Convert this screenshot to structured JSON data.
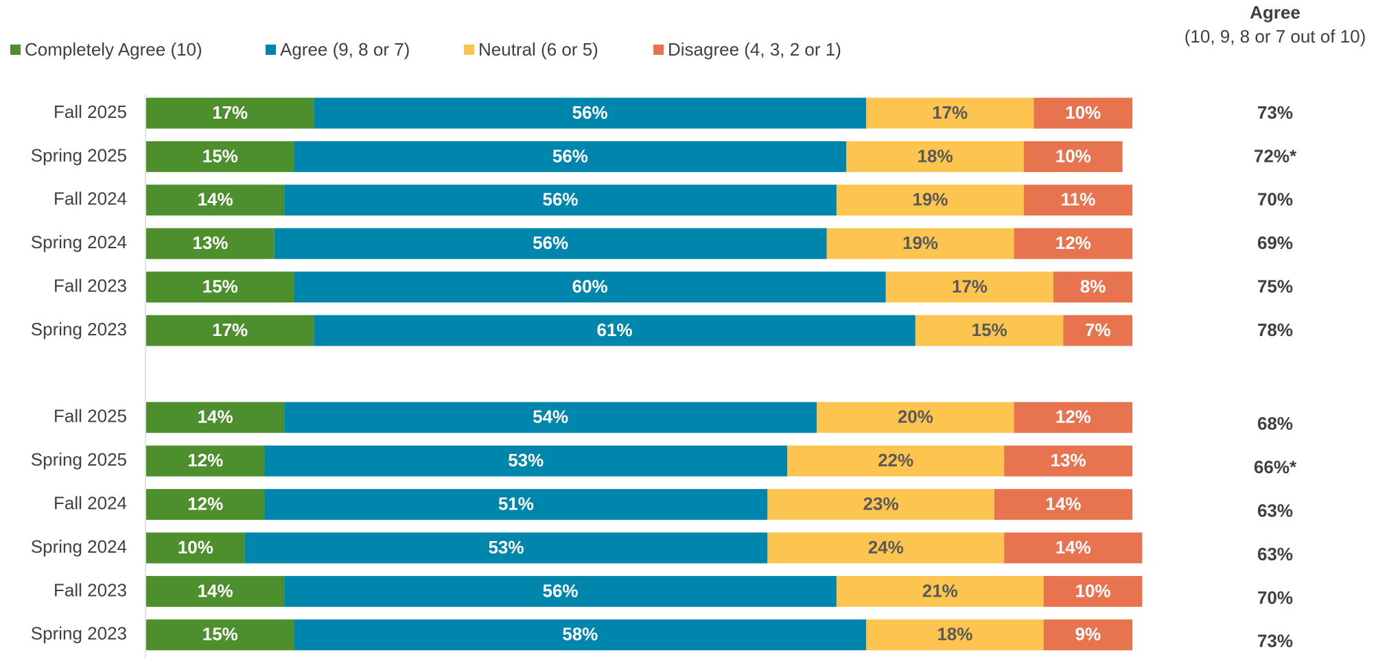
{
  "chart_data": {
    "type": "stacked_bar",
    "orientation": "horizontal",
    "categories": [
      "Fall 2025",
      "Spring 2025",
      "Fall 2024",
      "Spring 2024",
      "Fall 2023",
      "Spring 2023",
      null,
      "Fall 2025",
      "Spring 2025",
      "Fall 2024",
      "Spring 2024",
      "Fall 2023",
      "Spring 2023"
    ],
    "xlim": [
      0,
      100
    ],
    "legend": "top-left",
    "series": [
      {
        "name": "Completely Agree (10)",
        "color": "#4e8f2d",
        "values": [
          17,
          15,
          14,
          13,
          15,
          17,
          null,
          14,
          12,
          12,
          10,
          14,
          15
        ],
        "value_labels": [
          "17%",
          "15%",
          "14%",
          "13%",
          "15%",
          "17%",
          null,
          "14%",
          "12%",
          "12%",
          "10%",
          "14%",
          "15%"
        ]
      },
      {
        "name": "Agree (9, 8 or 7)",
        "color": "#0085ad",
        "values": [
          56,
          56,
          56,
          56,
          60,
          61,
          null,
          54,
          53,
          51,
          53,
          56,
          58
        ],
        "value_labels": [
          "56%",
          "56%",
          "56%",
          "56%",
          "60%",
          "61%",
          null,
          "54%",
          "53%",
          "51%",
          "53%",
          "56%",
          "58%"
        ]
      },
      {
        "name": "Neutral (6 or 5)",
        "color": "#fdc54f",
        "values": [
          17,
          18,
          19,
          19,
          17,
          15,
          null,
          20,
          22,
          23,
          24,
          21,
          18
        ],
        "value_labels": [
          "17%",
          "18%",
          "19%",
          "19%",
          "17%",
          "15%",
          null,
          "20%",
          "22%",
          "23%",
          "24%",
          "21%",
          "18%"
        ]
      },
      {
        "name": "Disagree (4, 3, 2 or 1)",
        "color": "#e8734f",
        "values": [
          10,
          10,
          11,
          12,
          8,
          7,
          null,
          12,
          13,
          14,
          14,
          10,
          9
        ],
        "value_labels": [
          "10%",
          "10%",
          "11%",
          "12%",
          "8%",
          "7%",
          null,
          "12%",
          "13%",
          "14%",
          "14%",
          "10%",
          "9%"
        ]
      }
    ],
    "agree": {
      "title": "Agree",
      "subtitle": "(10, 9, 8 or 7 out of 10)",
      "values": [
        73,
        72,
        70,
        69,
        75,
        78,
        null,
        68,
        66,
        63,
        63,
        70,
        73
      ],
      "value_labels": [
        "73%",
        "72%*",
        "70%",
        "69%",
        "75%",
        "78%",
        null,
        "68%",
        "66%*",
        "63%",
        "63%",
        "70%",
        "73%"
      ]
    }
  }
}
